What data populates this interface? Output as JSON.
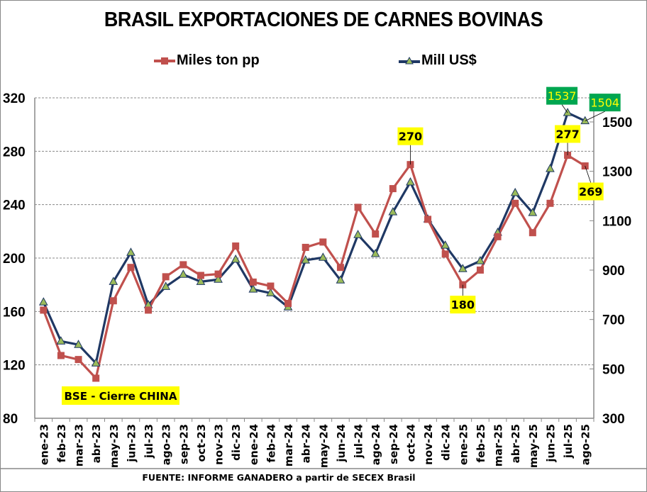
{
  "chart_data": {
    "type": "line",
    "title": "BRASIL EXPORTACIONES DE CARNES BOVINAS",
    "categories": [
      "ene-23",
      "feb-23",
      "mar-23",
      "abr-23",
      "may-23",
      "jun-23",
      "jul-23",
      "ago-23",
      "sep-23",
      "oct-23",
      "nov-23",
      "dic-23",
      "ene-24",
      "feb-24",
      "mar-24",
      "abr-24",
      "may-24",
      "jun-24",
      "jul-24",
      "ago-24",
      "sep-24",
      "oct-24",
      "nov-24",
      "dic-24",
      "ene-25",
      "feb-25",
      "mar-25",
      "abr-25",
      "may-25",
      "jun-25",
      "jul-25",
      "ago-25"
    ],
    "series": [
      {
        "name": "Miles ton pp",
        "axis": "left",
        "color": "#C0504D",
        "marker": "square",
        "values": [
          161,
          127,
          124,
          110,
          168,
          193,
          161,
          186,
          195,
          187,
          188,
          209,
          182,
          179,
          166,
          208,
          212,
          193,
          238,
          218,
          252,
          270,
          229,
          203,
          180,
          191,
          216,
          241,
          219,
          241,
          277,
          269
        ]
      },
      {
        "name": "Mill US$",
        "axis": "right",
        "color": "#1F3864",
        "marker": "triangle",
        "marker_fill": "#9BBB59",
        "values": [
          770,
          612,
          598,
          523,
          853,
          971,
          759,
          833,
          882,
          853,
          862,
          943,
          822,
          807,
          750,
          940,
          951,
          859,
          1043,
          966,
          1135,
          1256,
          1106,
          1000,
          905,
          937,
          1052,
          1213,
          1132,
          1310,
          1537,
          1504
        ]
      }
    ],
    "y_left": {
      "ylim": [
        80,
        320
      ],
      "ticks": [
        80,
        120,
        160,
        200,
        240,
        280,
        320
      ]
    },
    "y_right": {
      "ylim": [
        300,
        1500
      ],
      "ticks": [
        300,
        500,
        700,
        900,
        1100,
        1300,
        1500
      ]
    },
    "grid": true,
    "legend": "top",
    "annotations": [
      {
        "series": "Miles ton pp",
        "category": "oct-24",
        "text": "270",
        "bg": "#FFFF00",
        "color": "#000000"
      },
      {
        "series": "Miles ton pp",
        "category": "ene-25",
        "text": "180",
        "bg": "#FFFF00",
        "color": "#000000"
      },
      {
        "series": "Miles ton pp",
        "category": "jul-25",
        "text": "277",
        "bg": "#FFFF00",
        "color": "#000000"
      },
      {
        "series": "Miles ton pp",
        "category": "ago-25",
        "text": "269",
        "bg": "#FFFF00",
        "color": "#000000"
      },
      {
        "series": "Mill US$",
        "category": "jul-25",
        "text": "1537",
        "bg": "#00A650",
        "color": "#FFFF00"
      },
      {
        "series": "Mill US$",
        "category": "ago-25",
        "text": "1504",
        "bg": "#00A650",
        "color": "#FFFF00"
      }
    ],
    "note_box": {
      "text": "BSE - Cierre CHINA",
      "bg": "#FFFF00"
    },
    "source": "FUENTE: INFORME GANADERO  a partir de SECEX Brasil"
  }
}
